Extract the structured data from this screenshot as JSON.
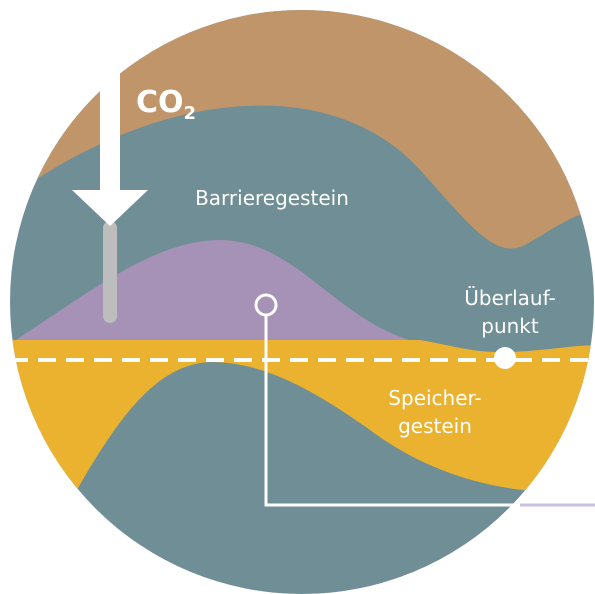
{
  "labels": {
    "co2": {
      "text": "CO",
      "subscript": "2"
    },
    "barrier_rock": "Barrieregestein",
    "spill_point": [
      "Überlauf-",
      "punkt"
    ],
    "reservoir_rock": [
      "Speicher-",
      "gestein"
    ]
  }
}
